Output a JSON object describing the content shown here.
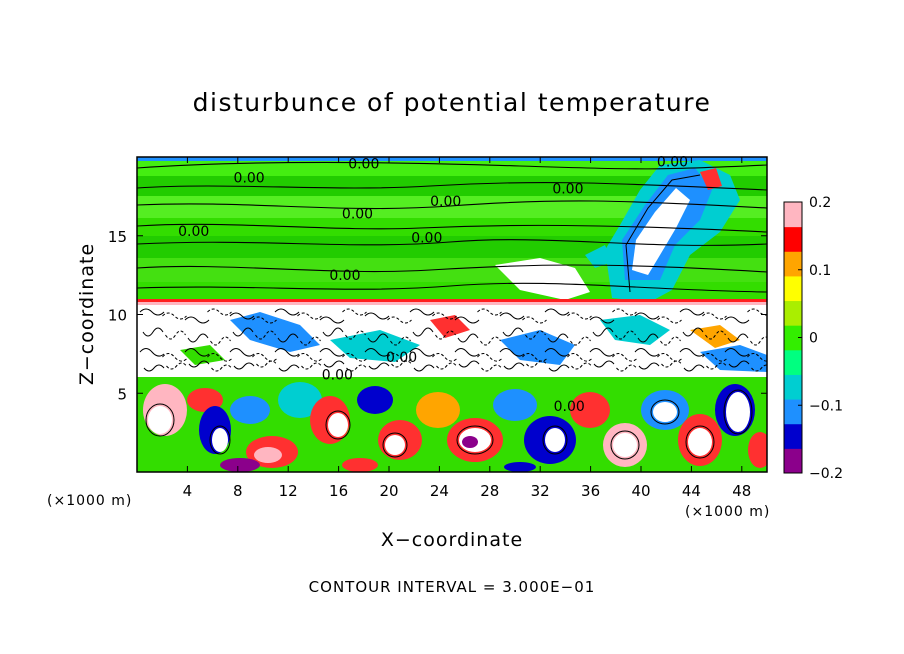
{
  "chart_data": {
    "type": "heatmap",
    "title": "disturbunce of potential temperature",
    "xlabel": "X−coordinate",
    "ylabel": "Z−coordinate",
    "x_unit_left": "(×1000 m)",
    "x_unit_right": "(×1000 m)",
    "footer": "CONTOUR INTERVAL = 3.000E−01",
    "xlim": [
      0,
      50
    ],
    "ylim": [
      0,
      20
    ],
    "x_ticks": [
      4,
      8,
      12,
      16,
      20,
      24,
      28,
      32,
      36,
      40,
      44,
      48
    ],
    "x_tick_labels": [
      "4",
      "8",
      "12",
      "16",
      "20",
      "24",
      "28",
      "32",
      "36",
      "40",
      "44",
      "48"
    ],
    "y_ticks": [
      5,
      10,
      15
    ],
    "y_tick_labels": [
      "5",
      "10",
      "15"
    ],
    "colorbar": {
      "range": [
        -0.2,
        0.2
      ],
      "ticks": [
        0.2,
        0.1,
        0,
        -0.1,
        -0.2
      ],
      "tick_labels": [
        "0.2",
        "0.1",
        "0",
        "−0.1",
        "−0.2"
      ],
      "colors": [
        "#8b008b",
        "#0000cd",
        "#1e90ff",
        "#00ced1",
        "#00ff80",
        "#33ee00",
        "#aaee00",
        "#ffff00",
        "#ffa500",
        "#ff0000",
        "#ffb6c1"
      ]
    },
    "contour_labels": [
      {
        "text": "0.00",
        "x": 18.0,
        "z": 19.6
      },
      {
        "text": "0.00",
        "x": 42.5,
        "z": 19.7
      },
      {
        "text": "0.00",
        "x": 8.9,
        "z": 18.7
      },
      {
        "text": "0.00",
        "x": 34.2,
        "z": 18.0
      },
      {
        "text": "0.00",
        "x": 24.5,
        "z": 17.2
      },
      {
        "text": "0.00",
        "x": 17.5,
        "z": 16.4
      },
      {
        "text": "0.00",
        "x": 4.5,
        "z": 15.3
      },
      {
        "text": "0.00",
        "x": 23.0,
        "z": 14.9
      },
      {
        "text": "0.00",
        "x": 16.5,
        "z": 12.5
      },
      {
        "text": "0.00",
        "x": 21.0,
        "z": 7.3
      },
      {
        "text": "0.00",
        "x": 15.9,
        "z": 6.2
      },
      {
        "text": "0.00",
        "x": 34.3,
        "z": 4.2
      }
    ]
  }
}
